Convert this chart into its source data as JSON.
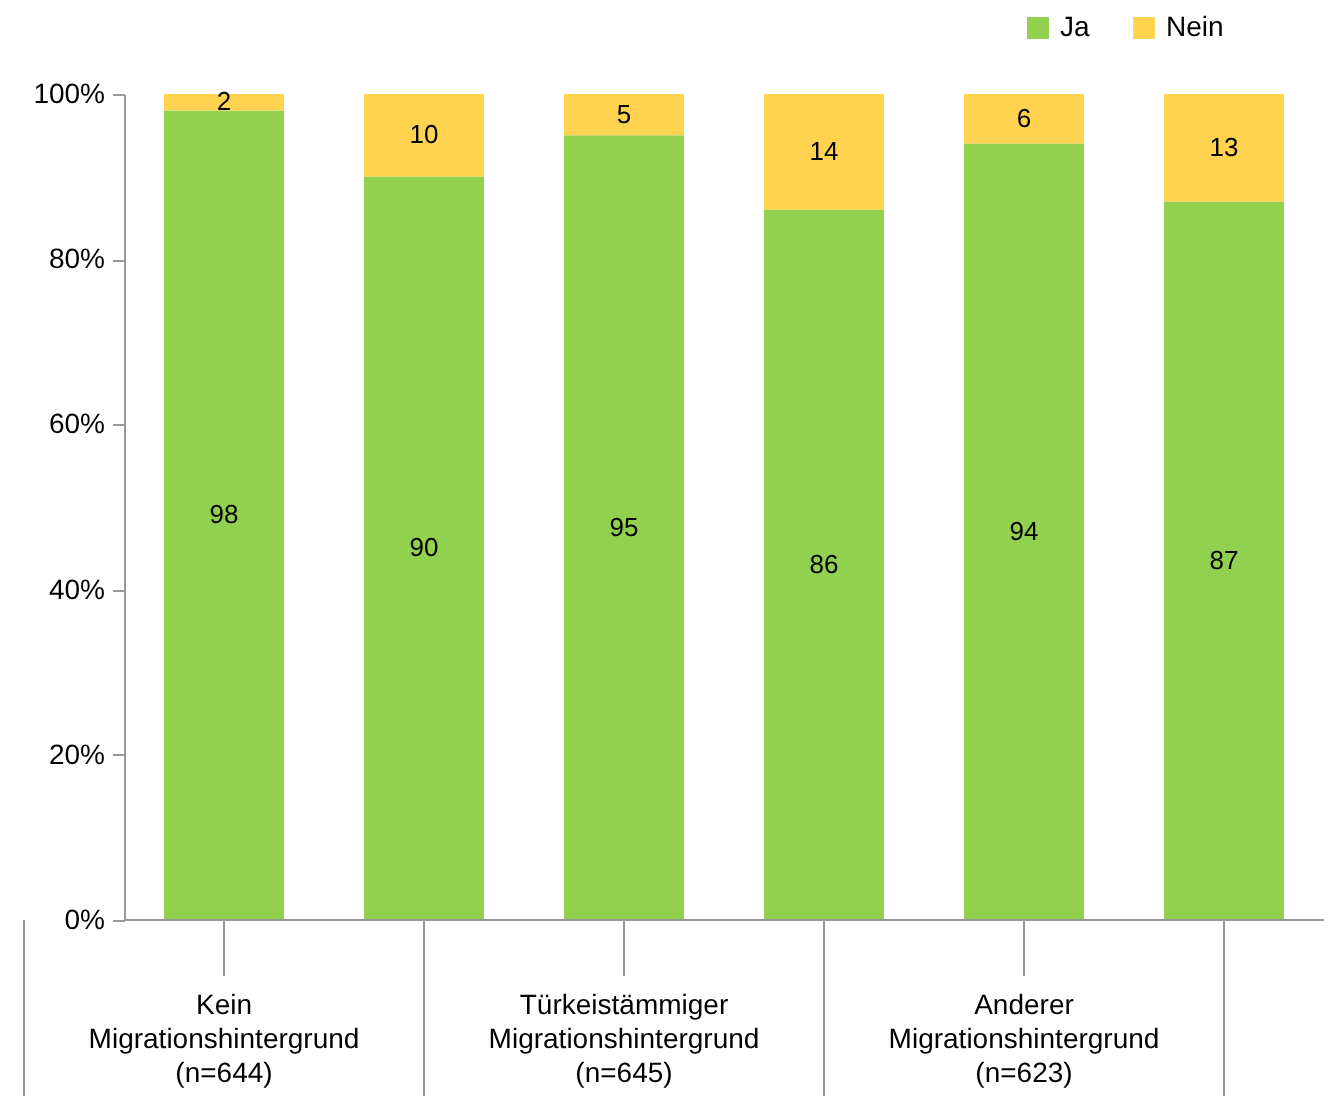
{
  "chart_data": {
    "type": "bar",
    "stacked": true,
    "categories": [
      null,
      null,
      null,
      null,
      null,
      null
    ],
    "series": [
      {
        "name": "Ja",
        "color": "#92d050",
        "values": [
          98,
          90,
          95,
          86,
          94,
          87
        ]
      },
      {
        "name": "Nein",
        "color": "#ffd34f",
        "values": [
          2,
          10,
          5,
          14,
          6,
          13
        ]
      }
    ],
    "ylim": [
      0,
      100
    ],
    "yticks": [
      {
        "value": 0,
        "label": "0%"
      },
      {
        "value": 20,
        "label": "20%"
      },
      {
        "value": 40,
        "label": "40%"
      },
      {
        "value": 60,
        "label": "60%"
      },
      {
        "value": 80,
        "label": "80%"
      },
      {
        "value": 100,
        "label": "100%"
      }
    ],
    "data_labels": true,
    "grid": false,
    "legend": "top right",
    "annotations": [
      "Kein Migrationshintergrund (n=644)",
      "Türkeistämmiger Migrationshintergrund (n=645)",
      "Anderer Migrationshintergrund (n=623)"
    ]
  }
}
